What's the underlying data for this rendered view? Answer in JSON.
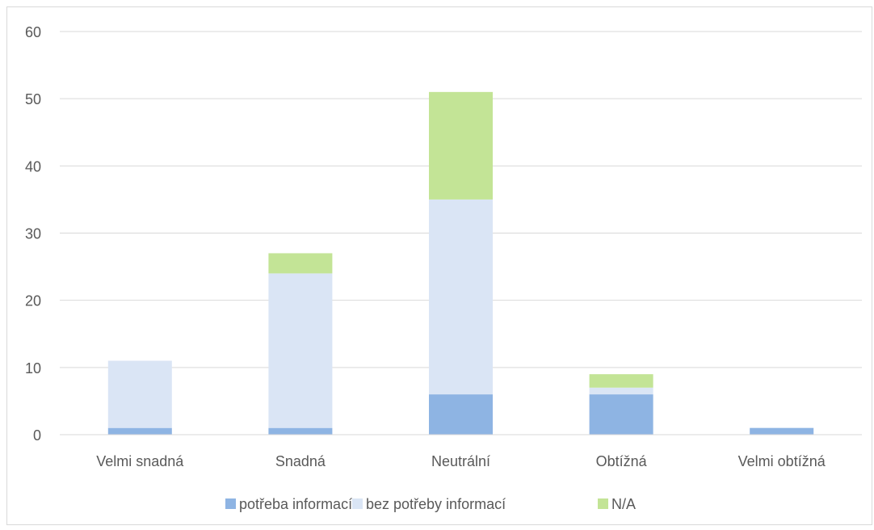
{
  "chart_data": {
    "type": "bar",
    "stacked": true,
    "categories": [
      "Velmi snadná",
      "Snadná",
      "Neutrální",
      "Obtížná",
      "Velmi obtížná"
    ],
    "series": [
      {
        "name": "potřeba informací",
        "values": [
          1,
          1,
          6,
          6,
          1
        ],
        "color": "#8eb4e3"
      },
      {
        "name": "bez potřeby informací",
        "values": [
          10,
          23,
          29,
          1,
          0
        ],
        "color": "#dae5f5"
      },
      {
        "name": "N/A",
        "values": [
          0,
          3,
          16,
          2,
          0
        ],
        "color": "#c3e496"
      }
    ],
    "ylim": [
      0,
      60
    ],
    "yticks": [
      "0",
      "10",
      "20",
      "30",
      "40",
      "50",
      "60"
    ],
    "grid": true,
    "legend_position": "bottom"
  }
}
